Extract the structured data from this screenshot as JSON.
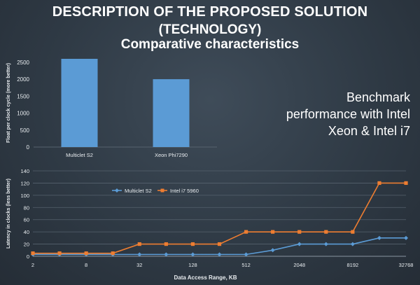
{
  "slide": {
    "title_line1": "DESCRIPTION OF THE PROPOSED SOLUTION",
    "title_line2": "(TECHNOLOGY)",
    "subtitle": "Comparative characteristics",
    "side_line1": "Benchmark",
    "side_line2": "performance with Intel",
    "side_line3": "Xeon & Intel i7"
  },
  "colors": {
    "bar": "#5b9bd5",
    "multiclet": "#5b9bd5",
    "intel": "#ed7d31",
    "axis_text": "#e8ecef",
    "grid": "#56626e"
  },
  "chart_data": [
    {
      "type": "bar",
      "categories": [
        "Multiclet S2",
        "Xeon Phi7290"
      ],
      "values": [
        2600,
        2000
      ],
      "ylabel": "Float per clock cycle (more better)",
      "ylim": [
        0,
        2600
      ],
      "yticks": [
        0,
        500,
        1000,
        1500,
        2000,
        2500
      ],
      "grid": false
    },
    {
      "type": "line",
      "x_ticks": [
        "2",
        "8",
        "32",
        "128",
        "512",
        "2048",
        "8192",
        "32768"
      ],
      "x": [
        2,
        4,
        8,
        16,
        32,
        64,
        128,
        256,
        512,
        1024,
        2048,
        4096,
        8192,
        16384,
        32768
      ],
      "xscale": "log2",
      "xlabel": "Data Access Range, KB",
      "ylabel": "Latency in clocks (less better)",
      "ylim": [
        0,
        140
      ],
      "yticks": [
        0,
        20,
        40,
        60,
        80,
        100,
        120,
        140
      ],
      "grid": true,
      "legend": "top-left",
      "series": [
        {
          "name": "Multiclet S2",
          "marker": "diamond",
          "values": [
            3,
            3,
            3,
            3,
            3,
            3,
            3,
            3,
            3,
            10,
            20,
            20,
            20,
            30,
            30
          ]
        },
        {
          "name": "Intel i7 5960",
          "marker": "square",
          "values": [
            5,
            5,
            5,
            5,
            20,
            20,
            20,
            20,
            40,
            40,
            40,
            40,
            40,
            120,
            120
          ]
        }
      ]
    }
  ]
}
